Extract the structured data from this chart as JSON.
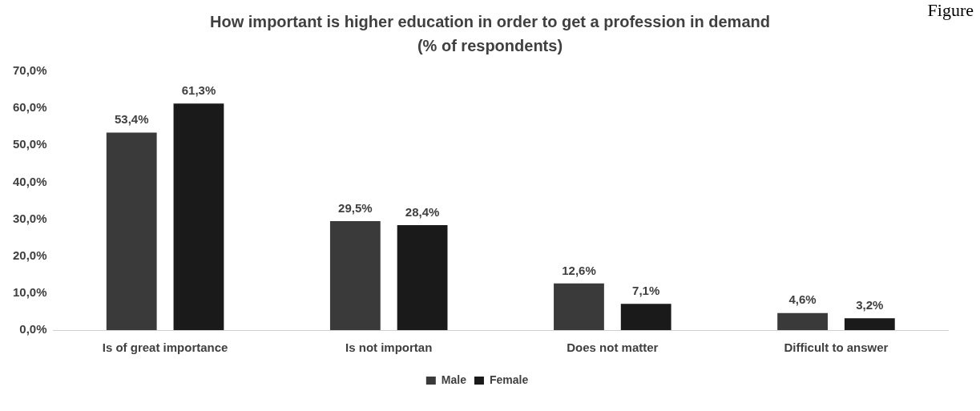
{
  "chart_data": {
    "type": "bar",
    "title": "How important is higher education in order to get a profession in demand (% of respondents)",
    "annotations": [
      "Figure"
    ],
    "categories": [
      "Is of great importance",
      "Is not importan",
      "Does not matter",
      "Difficult to answer"
    ],
    "series": [
      {
        "name": "Male",
        "color": "#3a3a3a",
        "values": [
          53.4,
          29.5,
          12.6,
          4.6
        ],
        "value_labels": [
          "53,4%",
          "29,5%",
          "12,6%",
          "4,6%"
        ]
      },
      {
        "name": "Female",
        "color": "#1a1a1a",
        "values": [
          61.3,
          28.4,
          7.1,
          3.2
        ],
        "value_labels": [
          "61,3%",
          "28,4%",
          "7,1%",
          "3,2%"
        ]
      }
    ],
    "ylim": [
      0,
      70
    ],
    "yticks": [
      {
        "value": 0,
        "label": "0,0%"
      },
      {
        "value": 10,
        "label": "10,0%"
      },
      {
        "value": 20,
        "label": "20,0%"
      },
      {
        "value": 30,
        "label": "30,0%"
      },
      {
        "value": 40,
        "label": "40,0%"
      },
      {
        "value": 50,
        "label": "50,0%"
      },
      {
        "value": 60,
        "label": "60,0%"
      },
      {
        "value": 70,
        "label": "70,0%"
      }
    ],
    "grid": false,
    "legend": "bottom"
  }
}
